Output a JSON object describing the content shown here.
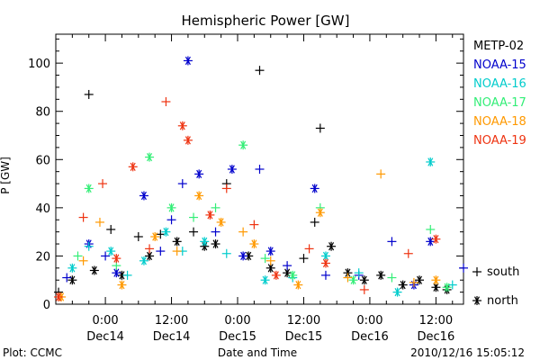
{
  "chart_data": {
    "type": "scatter",
    "title": "Hemispheric Power [GW]",
    "ylabel": "P [GW]",
    "xlabel": "Date and Time",
    "ylim": [
      0,
      112
    ],
    "xlim": [
      "2010-12-13 15:00",
      "2010-12-16 17:00"
    ],
    "y_ticks": [
      0,
      20,
      40,
      60,
      80,
      100
    ],
    "x_ticks": [
      {
        "time": "2010-12-14 00:00",
        "label1": "0:00",
        "label2": "Dec14"
      },
      {
        "time": "2010-12-14 12:00",
        "label1": "12:00",
        "label2": "Dec14"
      },
      {
        "time": "2010-12-15 00:00",
        "label1": "0:00",
        "label2": "Dec15"
      },
      {
        "time": "2010-12-15 12:00",
        "label1": "12:00",
        "label2": "Dec15"
      },
      {
        "time": "2010-12-16 00:00",
        "label1": "0:00",
        "label2": "Dec16"
      },
      {
        "time": "2010-12-16 12:00",
        "label1": "12:00",
        "label2": "Dec16"
      }
    ],
    "legend_placement": "right",
    "marker_legend": [
      {
        "marker": "+",
        "label": "south"
      },
      {
        "marker": "*",
        "label": "north"
      }
    ],
    "series": [
      {
        "name": "METP-02",
        "color": "#000000",
        "points": [
          {
            "x": "2010-12-13 15:30",
            "y": 5,
            "m": "+"
          },
          {
            "x": "2010-12-13 18:00",
            "y": 10,
            "m": "*"
          },
          {
            "x": "2010-12-13 21:00",
            "y": 87,
            "m": "+"
          },
          {
            "x": "2010-12-13 22:00",
            "y": 14,
            "m": "*"
          },
          {
            "x": "2010-12-14 01:00",
            "y": 31,
            "m": "+"
          },
          {
            "x": "2010-12-14 03:00",
            "y": 12,
            "m": "*"
          },
          {
            "x": "2010-12-14 06:00",
            "y": 28,
            "m": "+"
          },
          {
            "x": "2010-12-14 08:00",
            "y": 20,
            "m": "*"
          },
          {
            "x": "2010-12-14 10:00",
            "y": 29,
            "m": "+"
          },
          {
            "x": "2010-12-14 13:00",
            "y": 26,
            "m": "*"
          },
          {
            "x": "2010-12-14 16:00",
            "y": 30,
            "m": "+"
          },
          {
            "x": "2010-12-14 18:00",
            "y": 24,
            "m": "*"
          },
          {
            "x": "2010-12-14 20:00",
            "y": 25,
            "m": "*"
          },
          {
            "x": "2010-12-14 22:00",
            "y": 50,
            "m": "+"
          },
          {
            "x": "2010-12-15 02:00",
            "y": 20,
            "m": "*"
          },
          {
            "x": "2010-12-15 04:00",
            "y": 97,
            "m": "+"
          },
          {
            "x": "2010-12-15 06:00",
            "y": 15,
            "m": "*"
          },
          {
            "x": "2010-12-15 09:00",
            "y": 13,
            "m": "*"
          },
          {
            "x": "2010-12-15 12:00",
            "y": 19,
            "m": "+"
          },
          {
            "x": "2010-12-15 14:00",
            "y": 34,
            "m": "+"
          },
          {
            "x": "2010-12-15 15:00",
            "y": 73,
            "m": "+"
          },
          {
            "x": "2010-12-15 17:00",
            "y": 24,
            "m": "*"
          },
          {
            "x": "2010-12-15 20:00",
            "y": 13,
            "m": "*"
          },
          {
            "x": "2010-12-15 23:00",
            "y": 10,
            "m": "*"
          },
          {
            "x": "2010-12-16 02:00",
            "y": 12,
            "m": "*"
          },
          {
            "x": "2010-12-16 06:00",
            "y": 8,
            "m": "*"
          },
          {
            "x": "2010-12-16 09:00",
            "y": 10,
            "m": "*"
          },
          {
            "x": "2010-12-16 12:00",
            "y": 7,
            "m": "*"
          },
          {
            "x": "2010-12-16 14:00",
            "y": 6,
            "m": "*"
          }
        ]
      },
      {
        "name": "NOAA-15",
        "color": "#0000cc",
        "points": [
          {
            "x": "2010-12-13 17:00",
            "y": 11,
            "m": "+"
          },
          {
            "x": "2010-12-13 21:00",
            "y": 25,
            "m": "*"
          },
          {
            "x": "2010-12-14 00:00",
            "y": 20,
            "m": "+"
          },
          {
            "x": "2010-12-14 02:00",
            "y": 13,
            "m": "*"
          },
          {
            "x": "2010-12-14 07:00",
            "y": 45,
            "m": "*"
          },
          {
            "x": "2010-12-14 10:00",
            "y": 22,
            "m": "+"
          },
          {
            "x": "2010-12-14 12:00",
            "y": 35,
            "m": "+"
          },
          {
            "x": "2010-12-14 14:00",
            "y": 50,
            "m": "+"
          },
          {
            "x": "2010-12-14 15:00",
            "y": 101,
            "m": "*"
          },
          {
            "x": "2010-12-14 17:00",
            "y": 54,
            "m": "*"
          },
          {
            "x": "2010-12-14 20:00",
            "y": 30,
            "m": "+"
          },
          {
            "x": "2010-12-14 23:00",
            "y": 56,
            "m": "*"
          },
          {
            "x": "2010-12-15 01:00",
            "y": 20,
            "m": "*"
          },
          {
            "x": "2010-12-15 04:00",
            "y": 56,
            "m": "+"
          },
          {
            "x": "2010-12-15 06:00",
            "y": 22,
            "m": "*"
          },
          {
            "x": "2010-12-15 09:00",
            "y": 16,
            "m": "+"
          },
          {
            "x": "2010-12-15 14:00",
            "y": 48,
            "m": "*"
          },
          {
            "x": "2010-12-15 16:00",
            "y": 12,
            "m": "+"
          },
          {
            "x": "2010-12-15 22:00",
            "y": 12,
            "m": "+"
          },
          {
            "x": "2010-12-16 04:00",
            "y": 26,
            "m": "+"
          },
          {
            "x": "2010-12-16 08:00",
            "y": 8,
            "m": "*"
          },
          {
            "x": "2010-12-16 11:00",
            "y": 26,
            "m": "*"
          },
          {
            "x": "2010-12-16 17:00",
            "y": 15,
            "m": "+"
          }
        ]
      },
      {
        "name": "NOAA-16",
        "color": "#00cccc",
        "points": [
          {
            "x": "2010-12-13 18:00",
            "y": 15,
            "m": "*"
          },
          {
            "x": "2010-12-13 21:00",
            "y": 24,
            "m": "+"
          },
          {
            "x": "2010-12-14 01:00",
            "y": 22,
            "m": "*"
          },
          {
            "x": "2010-12-14 04:00",
            "y": 12,
            "m": "+"
          },
          {
            "x": "2010-12-14 07:00",
            "y": 18,
            "m": "*"
          },
          {
            "x": "2010-12-14 11:00",
            "y": 30,
            "m": "*"
          },
          {
            "x": "2010-12-14 14:00",
            "y": 22,
            "m": "+"
          },
          {
            "x": "2010-12-14 18:00",
            "y": 26,
            "m": "*"
          },
          {
            "x": "2010-12-14 22:00",
            "y": 21,
            "m": "+"
          },
          {
            "x": "2010-12-15 05:00",
            "y": 10,
            "m": "*"
          },
          {
            "x": "2010-12-15 10:00",
            "y": 11,
            "m": "+"
          },
          {
            "x": "2010-12-15 16:00",
            "y": 20,
            "m": "*"
          },
          {
            "x": "2010-12-15 22:00",
            "y": 13,
            "m": "+"
          },
          {
            "x": "2010-12-16 05:00",
            "y": 5,
            "m": "*"
          },
          {
            "x": "2010-12-16 11:00",
            "y": 59,
            "m": "*"
          },
          {
            "x": "2010-12-16 15:00",
            "y": 8,
            "m": "+"
          }
        ]
      },
      {
        "name": "NOAA-17",
        "color": "#33ee77",
        "points": [
          {
            "x": "2010-12-13 19:00",
            "y": 20,
            "m": "+"
          },
          {
            "x": "2010-12-13 21:00",
            "y": 48,
            "m": "*"
          },
          {
            "x": "2010-12-14 02:00",
            "y": 16,
            "m": "+"
          },
          {
            "x": "2010-12-14 08:00",
            "y": 61,
            "m": "*"
          },
          {
            "x": "2010-12-14 12:00",
            "y": 40,
            "m": "*"
          },
          {
            "x": "2010-12-14 16:00",
            "y": 36,
            "m": "+"
          },
          {
            "x": "2010-12-14 20:00",
            "y": 40,
            "m": "+"
          },
          {
            "x": "2010-12-15 01:00",
            "y": 66,
            "m": "*"
          },
          {
            "x": "2010-12-15 05:00",
            "y": 19,
            "m": "+"
          },
          {
            "x": "2010-12-15 10:00",
            "y": 12,
            "m": "*"
          },
          {
            "x": "2010-12-15 15:00",
            "y": 40,
            "m": "+"
          },
          {
            "x": "2010-12-15 21:00",
            "y": 10,
            "m": "*"
          },
          {
            "x": "2010-12-16 04:00",
            "y": 11,
            "m": "+"
          },
          {
            "x": "2010-12-16 11:00",
            "y": 31,
            "m": "+"
          },
          {
            "x": "2010-12-16 14:00",
            "y": 7,
            "m": "*"
          }
        ]
      },
      {
        "name": "NOAA-18",
        "color": "#ff9900",
        "points": [
          {
            "x": "2010-12-13 16:00",
            "y": 3,
            "m": "*"
          },
          {
            "x": "2010-12-13 20:00",
            "y": 18,
            "m": "+"
          },
          {
            "x": "2010-12-13 23:00",
            "y": 34,
            "m": "+"
          },
          {
            "x": "2010-12-14 03:00",
            "y": 8,
            "m": "*"
          },
          {
            "x": "2010-12-14 09:00",
            "y": 28,
            "m": "*"
          },
          {
            "x": "2010-12-14 13:00",
            "y": 22,
            "m": "+"
          },
          {
            "x": "2010-12-14 17:00",
            "y": 45,
            "m": "*"
          },
          {
            "x": "2010-12-14 21:00",
            "y": 34,
            "m": "*"
          },
          {
            "x": "2010-12-15 01:00",
            "y": 30,
            "m": "+"
          },
          {
            "x": "2010-12-15 03:00",
            "y": 25,
            "m": "*"
          },
          {
            "x": "2010-12-15 06:00",
            "y": 18,
            "m": "+"
          },
          {
            "x": "2010-12-15 11:00",
            "y": 8,
            "m": "*"
          },
          {
            "x": "2010-12-15 15:00",
            "y": 38,
            "m": "*"
          },
          {
            "x": "2010-12-15 20:00",
            "y": 11,
            "m": "+"
          },
          {
            "x": "2010-12-16 02:00",
            "y": 54,
            "m": "+"
          },
          {
            "x": "2010-12-16 08:00",
            "y": 9,
            "m": "+"
          },
          {
            "x": "2010-12-16 12:00",
            "y": 10,
            "m": "*"
          }
        ]
      },
      {
        "name": "NOAA-19",
        "color": "#ee3311",
        "points": [
          {
            "x": "2010-12-13 15:30",
            "y": 3,
            "m": "*"
          },
          {
            "x": "2010-12-13 20:00",
            "y": 36,
            "m": "+"
          },
          {
            "x": "2010-12-13 23:30",
            "y": 50,
            "m": "+"
          },
          {
            "x": "2010-12-14 02:00",
            "y": 19,
            "m": "*"
          },
          {
            "x": "2010-12-14 05:00",
            "y": 57,
            "m": "*"
          },
          {
            "x": "2010-12-14 08:00",
            "y": 23,
            "m": "+"
          },
          {
            "x": "2010-12-14 11:00",
            "y": 84,
            "m": "+"
          },
          {
            "x": "2010-12-14 14:00",
            "y": 74,
            "m": "*"
          },
          {
            "x": "2010-12-14 15:00",
            "y": 68,
            "m": "*"
          },
          {
            "x": "2010-12-14 19:00",
            "y": 37,
            "m": "*"
          },
          {
            "x": "2010-12-14 22:00",
            "y": 48,
            "m": "+"
          },
          {
            "x": "2010-12-15 03:00",
            "y": 33,
            "m": "+"
          },
          {
            "x": "2010-12-15 07:00",
            "y": 12,
            "m": "*"
          },
          {
            "x": "2010-12-15 13:00",
            "y": 23,
            "m": "+"
          },
          {
            "x": "2010-12-15 16:00",
            "y": 17,
            "m": "*"
          },
          {
            "x": "2010-12-15 23:00",
            "y": 6,
            "m": "+"
          },
          {
            "x": "2010-12-16 07:00",
            "y": 21,
            "m": "+"
          },
          {
            "x": "2010-12-16 12:00",
            "y": 27,
            "m": "*"
          }
        ]
      }
    ]
  },
  "footer": {
    "left": "Plot: CCMC",
    "right": "2010/12/16 15:05:12"
  }
}
